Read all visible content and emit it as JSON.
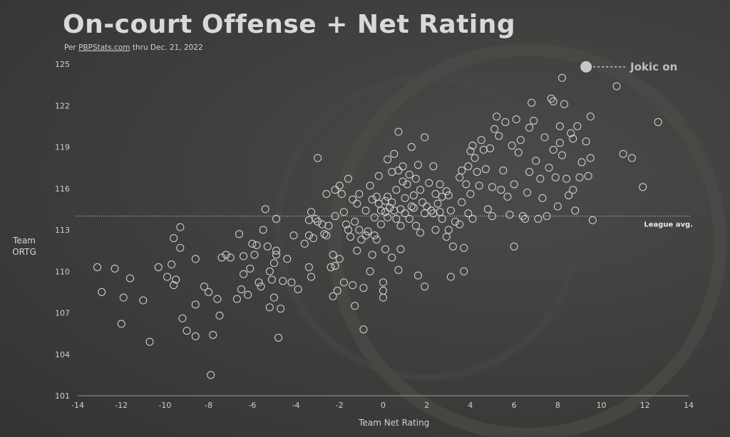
{
  "header": {
    "title": "On-court Offense + Net Rating",
    "subtitle_prefix": "Per ",
    "subtitle_source": "PBPStats.com",
    "subtitle_suffix": " thru Dec. 21, 2022"
  },
  "chart_data": {
    "type": "scatter",
    "title": "On-court Offense + Net Rating",
    "xlabel": "Team Net Rating",
    "ylabel_lines": [
      "Team",
      "ORTG"
    ],
    "xlim": [
      -14,
      14
    ],
    "ylim": [
      101,
      125
    ],
    "xticks": [
      -14,
      -12,
      -10,
      -8,
      -6,
      -4,
      -2,
      0,
      2,
      4,
      6,
      8,
      10,
      12,
      14
    ],
    "yticks": [
      101,
      104,
      107,
      110,
      113,
      116,
      119,
      122,
      125
    ],
    "league_avg": {
      "label": "League avg.",
      "y": 114.0
    },
    "highlight": {
      "label": "Jokic on",
      "x": 9.3,
      "y": 124.8
    },
    "points": [
      [
        -13.1,
        110.3
      ],
      [
        -12.9,
        108.5
      ],
      [
        -12.3,
        110.2
      ],
      [
        -12.0,
        106.2
      ],
      [
        -11.9,
        108.1
      ],
      [
        -11.6,
        109.5
      ],
      [
        -11.0,
        107.9
      ],
      [
        -10.7,
        104.9
      ],
      [
        -10.3,
        110.3
      ],
      [
        -9.9,
        109.6
      ],
      [
        -9.7,
        110.5
      ],
      [
        -9.6,
        109.0
      ],
      [
        -9.6,
        112.4
      ],
      [
        -9.5,
        109.4
      ],
      [
        -9.3,
        113.2
      ],
      [
        -9.3,
        111.7
      ],
      [
        -9.2,
        106.6
      ],
      [
        -9.0,
        105.7
      ],
      [
        -8.6,
        107.6
      ],
      [
        -8.6,
        105.3
      ],
      [
        -8.6,
        110.9
      ],
      [
        -8.2,
        108.9
      ],
      [
        -8.0,
        108.5
      ],
      [
        -7.9,
        102.5
      ],
      [
        -7.8,
        105.4
      ],
      [
        -7.6,
        108.0
      ],
      [
        -7.5,
        106.8
      ],
      [
        -7.4,
        111.0
      ],
      [
        -7.2,
        111.2
      ],
      [
        -7.0,
        111.0
      ],
      [
        -6.7,
        108.0
      ],
      [
        -6.6,
        112.7
      ],
      [
        -6.5,
        108.7
      ],
      [
        -6.4,
        109.8
      ],
      [
        -6.4,
        111.1
      ],
      [
        -6.2,
        108.3
      ],
      [
        -6.1,
        110.2
      ],
      [
        -6.0,
        112.0
      ],
      [
        -5.9,
        111.2
      ],
      [
        -5.8,
        111.9
      ],
      [
        -5.7,
        109.2
      ],
      [
        -5.6,
        108.9
      ],
      [
        -5.5,
        113.0
      ],
      [
        -5.4,
        114.5
      ],
      [
        -5.3,
        111.8
      ],
      [
        -5.2,
        110.0
      ],
      [
        -5.2,
        107.4
      ],
      [
        -5.1,
        109.4
      ],
      [
        -5.0,
        110.6
      ],
      [
        -5.0,
        108.1
      ],
      [
        -4.9,
        111.5
      ],
      [
        -4.9,
        113.8
      ],
      [
        -4.9,
        111.2
      ],
      [
        -4.8,
        105.2
      ],
      [
        -4.7,
        107.3
      ],
      [
        -4.6,
        109.3
      ],
      [
        -4.4,
        110.9
      ],
      [
        -4.2,
        109.2
      ],
      [
        -4.1,
        112.6
      ],
      [
        -3.9,
        108.7
      ],
      [
        -3.6,
        112.0
      ],
      [
        -3.4,
        112.6
      ],
      [
        -3.4,
        110.3
      ],
      [
        -3.4,
        113.7
      ],
      [
        -3.3,
        109.6
      ],
      [
        -3.3,
        114.3
      ],
      [
        -3.2,
        112.4
      ],
      [
        -3.1,
        113.8
      ],
      [
        -3.0,
        113.6
      ],
      [
        -3.0,
        118.2
      ],
      [
        -2.8,
        113.4
      ],
      [
        -2.7,
        112.7
      ],
      [
        -2.6,
        115.6
      ],
      [
        -2.6,
        112.6
      ],
      [
        -2.5,
        113.3
      ],
      [
        -2.4,
        110.3
      ],
      [
        -2.3,
        111.2
      ],
      [
        -2.3,
        108.2
      ],
      [
        -2.2,
        114.0
      ],
      [
        -2.2,
        115.9
      ],
      [
        -2.2,
        110.4
      ],
      [
        -2.1,
        108.6
      ],
      [
        -2.0,
        110.9
      ],
      [
        -2.0,
        116.2
      ],
      [
        -1.9,
        115.6
      ],
      [
        -1.8,
        114.3
      ],
      [
        -1.8,
        109.2
      ],
      [
        -1.7,
        113.4
      ],
      [
        -1.6,
        116.7
      ],
      [
        -1.6,
        113.0
      ],
      [
        -1.5,
        112.5
      ],
      [
        -1.4,
        115.2
      ],
      [
        -1.4,
        109.0
      ],
      [
        -1.3,
        113.6
      ],
      [
        -1.3,
        107.5
      ],
      [
        -1.2,
        114.9
      ],
      [
        -1.2,
        111.5
      ],
      [
        -1.1,
        115.6
      ],
      [
        -1.1,
        113.0
      ],
      [
        -1.0,
        112.3
      ],
      [
        -0.9,
        108.8
      ],
      [
        -0.9,
        105.8
      ],
      [
        -0.8,
        114.4
      ],
      [
        -0.8,
        112.6
      ],
      [
        -0.7,
        112.9
      ],
      [
        -0.6,
        116.2
      ],
      [
        -0.6,
        110.0
      ],
      [
        -0.5,
        115.2
      ],
      [
        -0.5,
        111.2
      ],
      [
        -0.4,
        113.9
      ],
      [
        -0.4,
        112.6
      ],
      [
        -0.3,
        115.4
      ],
      [
        -0.3,
        112.3
      ],
      [
        -0.2,
        116.9
      ],
      [
        -0.2,
        114.9
      ],
      [
        -0.1,
        114.4
      ],
      [
        -0.1,
        113.4
      ],
      [
        0.0,
        108.6
      ],
      [
        0.0,
        108.1
      ],
      [
        0.0,
        109.2
      ],
      [
        0.1,
        115.1
      ],
      [
        0.1,
        114.3
      ],
      [
        0.1,
        111.6
      ],
      [
        0.2,
        118.1
      ],
      [
        0.2,
        115.4
      ],
      [
        0.2,
        113.9
      ],
      [
        0.3,
        114.6
      ],
      [
        0.4,
        117.2
      ],
      [
        0.4,
        115.0
      ],
      [
        0.4,
        111.0
      ],
      [
        0.5,
        118.5
      ],
      [
        0.5,
        114.4
      ],
      [
        0.6,
        115.9
      ],
      [
        0.6,
        113.8
      ],
      [
        0.7,
        117.3
      ],
      [
        0.7,
        120.1
      ],
      [
        0.7,
        110.1
      ],
      [
        0.8,
        113.3
      ],
      [
        0.8,
        114.5
      ],
      [
        0.8,
        111.6
      ],
      [
        0.9,
        116.5
      ],
      [
        0.9,
        117.6
      ],
      [
        1.0,
        115.3
      ],
      [
        1.0,
        114.2
      ],
      [
        1.1,
        116.3
      ],
      [
        1.2,
        117.0
      ],
      [
        1.2,
        113.8
      ],
      [
        1.3,
        114.7
      ],
      [
        1.3,
        119.0
      ],
      [
        1.4,
        115.5
      ],
      [
        1.4,
        114.6
      ],
      [
        1.5,
        116.7
      ],
      [
        1.5,
        113.3
      ],
      [
        1.6,
        117.7
      ],
      [
        1.6,
        109.7
      ],
      [
        1.7,
        115.9
      ],
      [
        1.7,
        112.8
      ],
      [
        1.8,
        115.0
      ],
      [
        1.9,
        119.7
      ],
      [
        1.9,
        114.2
      ],
      [
        1.9,
        108.9
      ],
      [
        2.0,
        114.7
      ],
      [
        2.1,
        116.4
      ],
      [
        2.2,
        114.4
      ],
      [
        2.3,
        117.6
      ],
      [
        2.3,
        114.2
      ],
      [
        2.4,
        115.6
      ],
      [
        2.4,
        113.0
      ],
      [
        2.5,
        114.9
      ],
      [
        2.6,
        116.3
      ],
      [
        2.6,
        114.3
      ],
      [
        2.7,
        115.4
      ],
      [
        2.7,
        113.8
      ],
      [
        2.9,
        115.8
      ],
      [
        2.9,
        112.5
      ],
      [
        3.0,
        115.5
      ],
      [
        3.0,
        113.0
      ],
      [
        3.1,
        114.4
      ],
      [
        3.1,
        109.6
      ],
      [
        3.2,
        111.8
      ],
      [
        3.3,
        113.6
      ],
      [
        3.5,
        116.8
      ],
      [
        3.5,
        113.4
      ],
      [
        3.6,
        117.3
      ],
      [
        3.6,
        115.0
      ],
      [
        3.7,
        111.7
      ],
      [
        3.7,
        110.0
      ],
      [
        3.8,
        116.3
      ],
      [
        3.9,
        117.6
      ],
      [
        3.9,
        114.2
      ],
      [
        4.0,
        118.7
      ],
      [
        4.0,
        115.6
      ],
      [
        4.1,
        119.1
      ],
      [
        4.1,
        113.8
      ],
      [
        4.2,
        118.2
      ],
      [
        4.3,
        117.2
      ],
      [
        4.4,
        116.2
      ],
      [
        4.5,
        119.5
      ],
      [
        4.6,
        118.8
      ],
      [
        4.7,
        117.4
      ],
      [
        4.8,
        114.5
      ],
      [
        4.9,
        118.9
      ],
      [
        5.0,
        116.1
      ],
      [
        5.0,
        114.0
      ],
      [
        5.1,
        120.3
      ],
      [
        5.2,
        121.2
      ],
      [
        5.3,
        119.8
      ],
      [
        5.4,
        115.9
      ],
      [
        5.5,
        117.3
      ],
      [
        5.6,
        120.8
      ],
      [
        5.7,
        115.4
      ],
      [
        5.8,
        114.1
      ],
      [
        5.9,
        119.1
      ],
      [
        6.0,
        116.3
      ],
      [
        6.0,
        111.8
      ],
      [
        6.1,
        121.0
      ],
      [
        6.2,
        118.6
      ],
      [
        6.3,
        119.5
      ],
      [
        6.4,
        114.0
      ],
      [
        6.5,
        113.8
      ],
      [
        6.6,
        115.7
      ],
      [
        6.7,
        120.4
      ],
      [
        6.7,
        117.2
      ],
      [
        6.8,
        122.2
      ],
      [
        6.9,
        120.9
      ],
      [
        7.0,
        118.0
      ],
      [
        7.1,
        113.8
      ],
      [
        7.2,
        116.7
      ],
      [
        7.3,
        115.3
      ],
      [
        7.4,
        119.7
      ],
      [
        7.5,
        114.0
      ],
      [
        7.6,
        117.5
      ],
      [
        7.7,
        122.5
      ],
      [
        7.8,
        122.3
      ],
      [
        7.8,
        118.8
      ],
      [
        7.9,
        116.8
      ],
      [
        8.0,
        114.7
      ],
      [
        8.1,
        119.3
      ],
      [
        8.1,
        120.5
      ],
      [
        8.2,
        118.4
      ],
      [
        8.3,
        122.1
      ],
      [
        8.4,
        116.7
      ],
      [
        8.5,
        115.5
      ],
      [
        8.6,
        120.0
      ],
      [
        8.7,
        115.9
      ],
      [
        8.7,
        119.6
      ],
      [
        8.8,
        114.4
      ],
      [
        8.9,
        120.5
      ],
      [
        9.0,
        116.8
      ],
      [
        9.1,
        117.9
      ],
      [
        9.3,
        119.4
      ],
      [
        9.4,
        116.9
      ],
      [
        9.5,
        121.2
      ],
      [
        9.5,
        118.2
      ],
      [
        9.6,
        113.7
      ],
      [
        11.0,
        118.5
      ],
      [
        11.4,
        118.2
      ],
      [
        11.9,
        116.1
      ],
      [
        12.6,
        120.8
      ],
      [
        8.2,
        124.0
      ],
      [
        10.7,
        123.4
      ]
    ]
  }
}
